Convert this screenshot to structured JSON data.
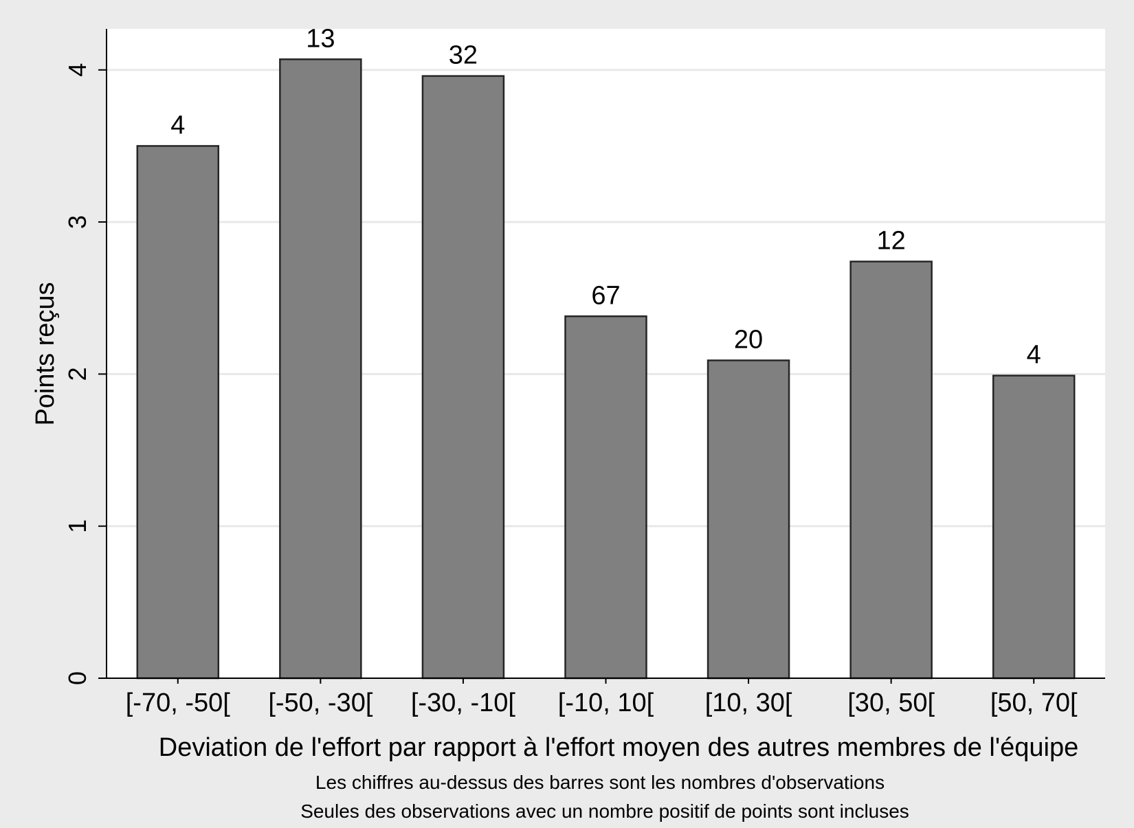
{
  "chart_data": {
    "type": "bar",
    "categories": [
      "[-70, -50[",
      "[-50, -30[",
      "[-30, -10[",
      "[-10, 10[",
      "[10, 30[",
      "[30, 50[",
      "[50, 70["
    ],
    "values": [
      3.5,
      4.07,
      3.96,
      2.38,
      2.09,
      2.74,
      1.99
    ],
    "data_labels": [
      "4",
      "13",
      "32",
      "67",
      "20",
      "12",
      "4"
    ],
    "xlabel": "Deviation de l'effort par rapport à l'effort moyen des autres membres de l'équipe",
    "ylabel": "Points reçus",
    "notes": [
      "Les chiffres au-dessus des barres sont les nombres d'observations",
      "Seules des observations avec un nombre positif de points sont incluses"
    ],
    "ylim": [
      0,
      4.27
    ],
    "yticks": [
      0,
      1,
      2,
      3,
      4
    ],
    "ytick_labels": [
      "0",
      "1",
      "2",
      "3",
      "4"
    ],
    "grid": true,
    "colors": {
      "bar_fill": "#808080",
      "bar_stroke": "#262626",
      "plot_background": "#ffffff",
      "outer_background": "#ebebeb",
      "gridline": "#e8e8e8",
      "axis": "#000000"
    }
  }
}
